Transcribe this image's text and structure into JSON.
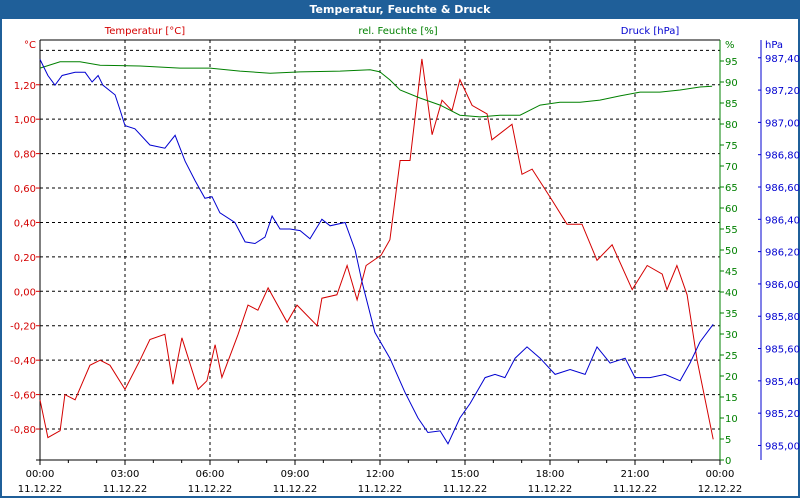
{
  "window": {
    "title": "Temperatur, Feuchte & Druck"
  },
  "colors": {
    "temperature": "#d40000",
    "humidity": "#008000",
    "pressure": "#0000d0",
    "titlebar": "#1f5f99"
  },
  "chart_data": {
    "type": "line",
    "title": "Temperatur, Feuchte & Druck",
    "x_unit": "hours since 11.12.22 00:00",
    "xlim": [
      0,
      24
    ],
    "x_ticks": [
      {
        "time": "00:00",
        "date": "11.12.22",
        "h": 0
      },
      {
        "time": "03:00",
        "date": "11.12.22",
        "h": 3
      },
      {
        "time": "06:00",
        "date": "11.12.22",
        "h": 6
      },
      {
        "time": "09:00",
        "date": "11.12.22",
        "h": 9
      },
      {
        "time": "12:00",
        "date": "11.12.22",
        "h": 12
      },
      {
        "time": "15:00",
        "date": "11.12.22",
        "h": 15
      },
      {
        "time": "18:00",
        "date": "11.12.22",
        "h": 18
      },
      {
        "time": "21:00",
        "date": "11.12.22",
        "h": 21
      },
      {
        "time": "00:00",
        "date": "12.12.22",
        "h": 24
      }
    ],
    "grid": true,
    "axes": {
      "temperature": {
        "legend": "Temperatur [°C]",
        "unit": "°C",
        "ylim": [
          -0.98,
          1.46
        ],
        "ticks": [
          "1,20",
          "1,00",
          "0,80",
          "0,60",
          "0,40",
          "0,20",
          "0,00",
          "-0,20",
          "-0,40",
          "-0,60",
          "-0,80"
        ],
        "tick_values": [
          1.2,
          1.0,
          0.8,
          0.6,
          0.4,
          0.2,
          0.0,
          -0.2,
          -0.4,
          -0.6,
          -0.8
        ]
      },
      "humidity": {
        "legend": "rel. Feuchte [%]",
        "unit": "%",
        "ylim": [
          0,
          100
        ],
        "ticks": [
          "95",
          "90",
          "85",
          "80",
          "75",
          "70",
          "65",
          "60",
          "55",
          "50",
          "45",
          "40",
          "35",
          "30",
          "25",
          "20",
          "15",
          "10",
          "5",
          "0"
        ],
        "tick_values": [
          95,
          90,
          85,
          80,
          75,
          70,
          65,
          60,
          55,
          50,
          45,
          40,
          35,
          30,
          25,
          20,
          15,
          10,
          5,
          0
        ]
      },
      "pressure": {
        "legend": "Druck [hPa]",
        "unit": "hPa",
        "ylim": [
          984.91,
          987.51
        ],
        "ticks": [
          "987,40",
          "987,20",
          "987,00",
          "986,80",
          "986,60",
          "986,40",
          "986,20",
          "986,00",
          "985,80",
          "985,60",
          "985,40",
          "985,20",
          "985,00"
        ],
        "tick_values": [
          987.4,
          987.2,
          987.0,
          986.8,
          986.6,
          986.4,
          986.2,
          986.0,
          985.8,
          985.6,
          985.4,
          985.2,
          985.0
        ]
      }
    },
    "series": [
      {
        "name": "Temperatur",
        "axis": "temperature",
        "points": [
          [
            0,
            -0.63
          ],
          [
            0.28,
            -0.85
          ],
          [
            0.71,
            -0.81
          ],
          [
            0.88,
            -0.6
          ],
          [
            1.24,
            -0.63
          ],
          [
            1.76,
            -0.43
          ],
          [
            2.12,
            -0.4
          ],
          [
            2.47,
            -0.43
          ],
          [
            3.0,
            -0.57
          ],
          [
            3.53,
            -0.4
          ],
          [
            3.88,
            -0.28
          ],
          [
            4.41,
            -0.25
          ],
          [
            4.69,
            -0.54
          ],
          [
            5.01,
            -0.27
          ],
          [
            5.58,
            -0.57
          ],
          [
            5.89,
            -0.52
          ],
          [
            6.18,
            -0.31
          ],
          [
            6.42,
            -0.5
          ],
          [
            6.99,
            -0.25
          ],
          [
            7.34,
            -0.08
          ],
          [
            7.69,
            -0.11
          ],
          [
            8.05,
            0.02
          ],
          [
            8.72,
            -0.18
          ],
          [
            9.07,
            -0.08
          ],
          [
            9.78,
            -0.2
          ],
          [
            9.95,
            -0.04
          ],
          [
            10.48,
            -0.02
          ],
          [
            10.84,
            0.15
          ],
          [
            11.19,
            -0.05
          ],
          [
            11.51,
            0.15
          ],
          [
            12.04,
            0.21
          ],
          [
            12.35,
            0.3
          ],
          [
            12.71,
            0.76
          ],
          [
            13.06,
            0.76
          ],
          [
            13.48,
            1.35
          ],
          [
            13.84,
            0.91
          ],
          [
            14.19,
            1.11
          ],
          [
            14.54,
            1.05
          ],
          [
            14.82,
            1.23
          ],
          [
            15.25,
            1.08
          ],
          [
            15.78,
            1.03
          ],
          [
            15.95,
            0.88
          ],
          [
            16.66,
            0.97
          ],
          [
            17.01,
            0.68
          ],
          [
            17.37,
            0.71
          ],
          [
            18.07,
            0.53
          ],
          [
            18.6,
            0.39
          ],
          [
            19.13,
            0.39
          ],
          [
            19.66,
            0.18
          ],
          [
            20.19,
            0.27
          ],
          [
            20.9,
            0.01
          ],
          [
            21.43,
            0.15
          ],
          [
            21.96,
            0.1
          ],
          [
            22.13,
            0.01
          ],
          [
            22.48,
            0.15
          ],
          [
            22.84,
            -0.02
          ],
          [
            23.19,
            -0.4
          ],
          [
            23.76,
            -0.86
          ]
        ]
      },
      {
        "name": "rel. Feuchte",
        "axis": "humidity",
        "points": [
          [
            0,
            93.3
          ],
          [
            0.71,
            94.8
          ],
          [
            1.41,
            94.8
          ],
          [
            2.12,
            94.0
          ],
          [
            3.53,
            93.8
          ],
          [
            4.94,
            93.3
          ],
          [
            6.0,
            93.3
          ],
          [
            7.06,
            92.6
          ],
          [
            8.12,
            92.1
          ],
          [
            9.18,
            92.4
          ],
          [
            10.59,
            92.6
          ],
          [
            11.65,
            92.9
          ],
          [
            12.0,
            92.4
          ],
          [
            12.35,
            90.5
          ],
          [
            12.71,
            88.1
          ],
          [
            13.41,
            86.2
          ],
          [
            14.12,
            84.5
          ],
          [
            14.82,
            82.1
          ],
          [
            15.53,
            81.7
          ],
          [
            16.24,
            82.1
          ],
          [
            16.94,
            82.1
          ],
          [
            17.65,
            84.5
          ],
          [
            18.35,
            85.2
          ],
          [
            19.06,
            85.2
          ],
          [
            19.76,
            85.7
          ],
          [
            20.47,
            86.7
          ],
          [
            21.18,
            87.6
          ],
          [
            21.88,
            87.6
          ],
          [
            22.59,
            88.1
          ],
          [
            23.29,
            88.8
          ],
          [
            23.72,
            89.0
          ]
        ]
      },
      {
        "name": "Druck",
        "axis": "pressure",
        "points": [
          [
            0,
            987.39
          ],
          [
            0.28,
            987.29
          ],
          [
            0.53,
            987.23
          ],
          [
            0.78,
            987.29
          ],
          [
            1.24,
            987.31
          ],
          [
            1.59,
            987.31
          ],
          [
            1.84,
            987.25
          ],
          [
            2.05,
            987.29
          ],
          [
            2.22,
            987.23
          ],
          [
            2.65,
            987.17
          ],
          [
            2.82,
            987.08
          ],
          [
            3.0,
            986.98
          ],
          [
            3.35,
            986.96
          ],
          [
            3.88,
            986.86
          ],
          [
            4.41,
            986.84
          ],
          [
            4.77,
            986.92
          ],
          [
            5.12,
            986.76
          ],
          [
            5.47,
            986.64
          ],
          [
            5.82,
            986.53
          ],
          [
            6.07,
            986.54
          ],
          [
            6.35,
            986.44
          ],
          [
            6.88,
            986.38
          ],
          [
            7.24,
            986.26
          ],
          [
            7.59,
            986.25
          ],
          [
            7.94,
            986.29
          ],
          [
            8.19,
            986.42
          ],
          [
            8.47,
            986.34
          ],
          [
            8.82,
            986.34
          ],
          [
            9.18,
            986.33
          ],
          [
            9.53,
            986.28
          ],
          [
            9.95,
            986.4
          ],
          [
            10.24,
            986.36
          ],
          [
            10.77,
            986.38
          ],
          [
            11.12,
            986.21
          ],
          [
            11.37,
            986.01
          ],
          [
            11.82,
            985.7
          ],
          [
            12.35,
            985.54
          ],
          [
            12.88,
            985.33
          ],
          [
            13.34,
            985.17
          ],
          [
            13.69,
            985.08
          ],
          [
            14.12,
            985.09
          ],
          [
            14.4,
            985.01
          ],
          [
            14.82,
            985.17
          ],
          [
            15.18,
            985.26
          ],
          [
            15.71,
            985.42
          ],
          [
            16.06,
            985.44
          ],
          [
            16.41,
            985.42
          ],
          [
            16.77,
            985.54
          ],
          [
            17.19,
            985.61
          ],
          [
            17.65,
            985.54
          ],
          [
            18.18,
            985.44
          ],
          [
            18.71,
            985.47
          ],
          [
            19.24,
            985.44
          ],
          [
            19.66,
            985.61
          ],
          [
            20.12,
            985.51
          ],
          [
            20.65,
            985.54
          ],
          [
            21.0,
            985.42
          ],
          [
            21.53,
            985.42
          ],
          [
            22.06,
            985.44
          ],
          [
            22.59,
            985.4
          ],
          [
            22.94,
            985.51
          ],
          [
            23.29,
            985.64
          ],
          [
            23.76,
            985.75
          ]
        ]
      }
    ]
  }
}
